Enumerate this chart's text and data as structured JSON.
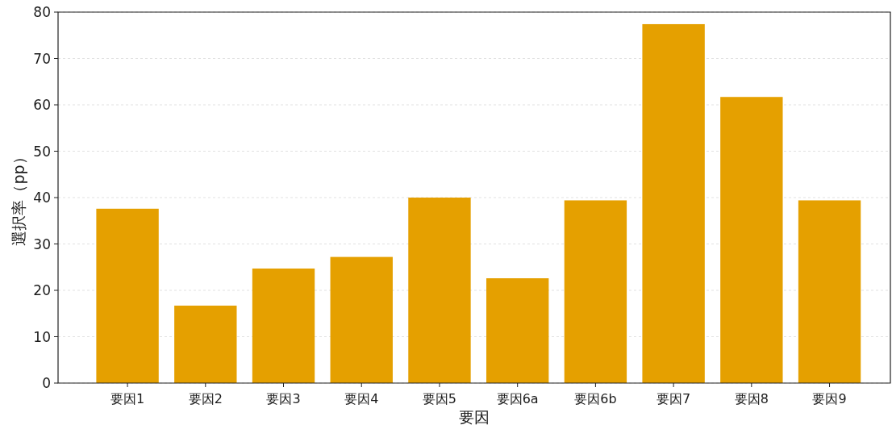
{
  "chart_data": {
    "type": "bar",
    "xlabel": "要因",
    "ylabel": "選択率（pp）",
    "categories": [
      "要因1",
      "要因2",
      "要因3",
      "要因4",
      "要因5",
      "要因6a",
      "要因6b",
      "要因7",
      "要因8",
      "要因9"
    ],
    "values": [
      37.6,
      16.7,
      24.7,
      27.2,
      40.0,
      22.6,
      39.4,
      77.4,
      61.7,
      39.4
    ],
    "color": "#e5a000",
    "ylim": [
      0,
      80
    ],
    "yticks": [
      0,
      10,
      20,
      30,
      40,
      50,
      60,
      70,
      80
    ],
    "grid": "y"
  }
}
